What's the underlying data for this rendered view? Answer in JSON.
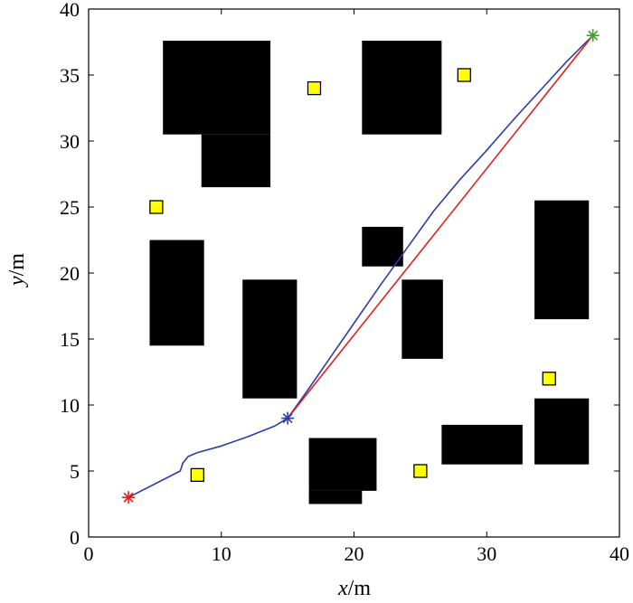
{
  "chart_data": {
    "type": "scatter",
    "title": "",
    "xlabel_var": "x",
    "xlabel_unit": "/m",
    "ylabel_var": "y",
    "ylabel_unit": "/m",
    "xlim": [
      0,
      40
    ],
    "ylim": [
      0,
      40
    ],
    "xticks": [
      "0",
      "10",
      "20",
      "30",
      "40"
    ],
    "yticks": [
      "0",
      "5",
      "10",
      "15",
      "20",
      "25",
      "30",
      "35",
      "40"
    ],
    "grid": false,
    "legend": "none",
    "obstacles": [
      {
        "x0": 5.6,
        "x1": 13.7,
        "y0": 30.5,
        "y1": 37.6
      },
      {
        "x0": 8.5,
        "x1": 13.7,
        "y0": 26.5,
        "y1": 30.5
      },
      {
        "x0": 20.6,
        "x1": 26.6,
        "y0": 30.5,
        "y1": 37.6
      },
      {
        "x0": 4.6,
        "x1": 8.7,
        "y0": 14.5,
        "y1": 22.5
      },
      {
        "x0": 11.6,
        "x1": 15.7,
        "y0": 10.5,
        "y1": 19.5
      },
      {
        "x0": 20.6,
        "x1": 23.7,
        "y0": 20.5,
        "y1": 23.5
      },
      {
        "x0": 23.6,
        "x1": 26.7,
        "y0": 13.5,
        "y1": 19.5
      },
      {
        "x0": 33.6,
        "x1": 37.7,
        "y0": 16.5,
        "y1": 25.5
      },
      {
        "x0": 33.6,
        "x1": 37.7,
        "y0": 5.5,
        "y1": 10.5
      },
      {
        "x0": 26.6,
        "x1": 32.7,
        "y0": 5.5,
        "y1": 8.5
      },
      {
        "x0": 16.6,
        "x1": 21.7,
        "y0": 3.5,
        "y1": 7.5
      },
      {
        "x0": 16.6,
        "x1": 20.6,
        "y0": 2.5,
        "y1": 3.5
      }
    ],
    "targets": [
      {
        "x": 17.0,
        "y": 34.0
      },
      {
        "x": 28.3,
        "y": 35.0
      },
      {
        "x": 5.1,
        "y": 25.0
      },
      {
        "x": 34.7,
        "y": 12.0
      },
      {
        "x": 8.2,
        "y": 4.7
      },
      {
        "x": 25.0,
        "y": 5.0
      }
    ],
    "start_point": {
      "x": 3.0,
      "y": 3.0
    },
    "waypoint": {
      "x": 15.0,
      "y": 9.0
    },
    "goal_point": {
      "x": 38.0,
      "y": 38.0
    },
    "series": [
      {
        "color": "#2b3da8",
        "x": [
          3.0,
          6.9,
          7.1,
          7.5,
          8.2,
          10.0,
          12.0,
          14.0,
          15.0,
          16.5,
          18.0,
          20.0,
          22.0,
          24.0,
          26.0,
          28.0,
          30.0,
          32.0,
          34.0,
          36.0,
          38.0
        ],
        "y": [
          3.0,
          5.0,
          5.6,
          6.1,
          6.4,
          6.9,
          7.6,
          8.4,
          9.0,
          11.1,
          13.3,
          16.2,
          19.1,
          21.9,
          24.7,
          27.1,
          29.3,
          31.6,
          33.8,
          36.0,
          38.0
        ]
      },
      {
        "color": "#e0211d",
        "x": [
          15.0,
          38.0
        ],
        "y": [
          9.0,
          38.0
        ]
      }
    ],
    "colors": {
      "obstacle": "#000000",
      "target_fill": "#ffff00",
      "start": "#e0211d",
      "waypoint": "#2b3da8",
      "goal": "#3fa52a"
    }
  }
}
